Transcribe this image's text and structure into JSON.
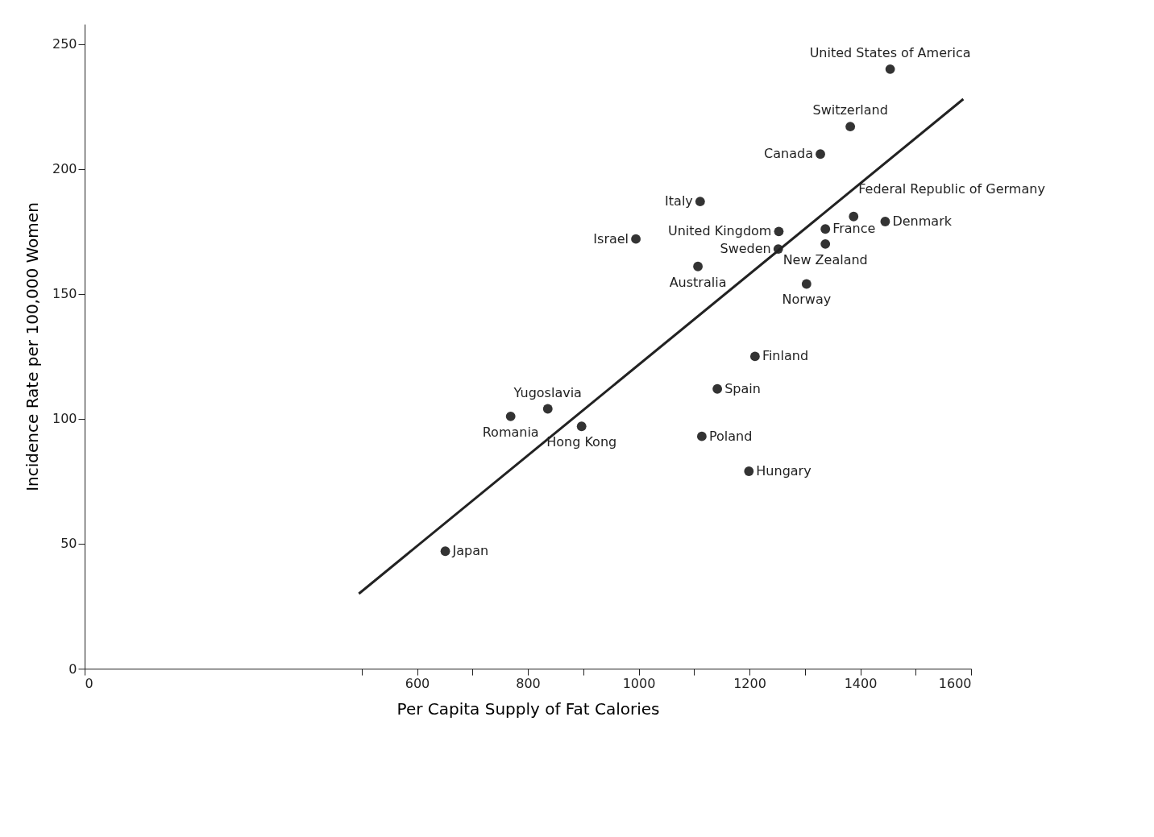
{
  "chart_data": {
    "type": "scatter",
    "xlabel": "Per Capita Supply of Fat Calories",
    "ylabel": "Incidence Rate per 100,000 Women",
    "xlim": [
      0,
      1600
    ],
    "ylim": [
      0,
      258
    ],
    "xticks": [
      0,
      {
        "value": 500,
        "label": null
      },
      600,
      {
        "value": 700,
        "label": null
      },
      800,
      {
        "value": 900,
        "label": null
      },
      1000,
      {
        "value": 1100,
        "label": null
      },
      1200,
      {
        "value": 1300,
        "label": null
      },
      1400,
      {
        "value": 1500,
        "label": null
      },
      1600
    ],
    "yticks": [
      0,
      50,
      100,
      150,
      200,
      250
    ],
    "grid": false,
    "series": [
      {
        "marker": "circle",
        "color": "#333333",
        "x": [
          651,
          769,
          836,
          897,
          995,
          1107,
          1111,
          1114,
          1142,
          1210,
          1199,
          1253,
          1252,
          1303,
          1328,
          1337,
          1337,
          1382,
          1388,
          1445,
          1454
        ],
        "values": [
          47,
          101,
          104,
          97,
          172,
          161,
          187,
          93,
          112,
          125,
          79,
          175,
          168,
          154,
          206,
          176,
          170,
          217,
          181,
          179,
          240
        ]
      },
      {
        "type": "line",
        "marker": "none",
        "line_style": "solid",
        "color": "#222222",
        "x": [
          495,
          1586
        ],
        "values": [
          30,
          228
        ]
      }
    ],
    "annotations": [
      {
        "text": "Japan",
        "x": 651,
        "y": 47
      },
      {
        "text": "Romania",
        "x": 769,
        "y": 101
      },
      {
        "text": "Yugoslavia",
        "x": 836,
        "y": 104
      },
      {
        "text": "Hong Kong",
        "x": 897,
        "y": 97
      },
      {
        "text": "Israel",
        "x": 995,
        "y": 172
      },
      {
        "text": "Australia",
        "x": 1107,
        "y": 161
      },
      {
        "text": "Italy",
        "x": 1111,
        "y": 187
      },
      {
        "text": "Poland",
        "x": 1114,
        "y": 93
      },
      {
        "text": "Spain",
        "x": 1142,
        "y": 112
      },
      {
        "text": "Finland",
        "x": 1210,
        "y": 125
      },
      {
        "text": "Hungary",
        "x": 1199,
        "y": 79
      },
      {
        "text": "United Kingdom",
        "x": 1253,
        "y": 175
      },
      {
        "text": "Sweden",
        "x": 1252,
        "y": 168
      },
      {
        "text": "Norway",
        "x": 1303,
        "y": 154
      },
      {
        "text": "Canada",
        "x": 1328,
        "y": 206
      },
      {
        "text": "France",
        "x": 1337,
        "y": 176
      },
      {
        "text": "New Zealand",
        "x": 1337,
        "y": 170
      },
      {
        "text": "Switzerland",
        "x": 1382,
        "y": 217
      },
      {
        "text": "Federal Republic of Germany",
        "x": 1388,
        "y": 181
      },
      {
        "text": "Denmark",
        "x": 1445,
        "y": 179
      },
      {
        "text": "United States of America",
        "x": 1454,
        "y": 240
      }
    ]
  }
}
